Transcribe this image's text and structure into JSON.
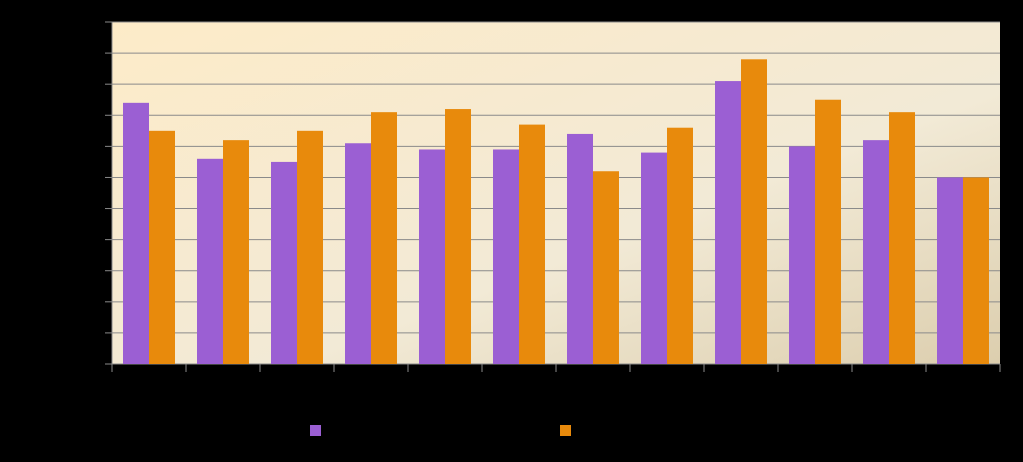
{
  "chart_data": {
    "type": "bar",
    "categories": [
      null,
      null,
      null,
      null,
      null,
      null,
      null,
      null,
      null,
      null,
      null,
      null
    ],
    "series": [
      {
        "color": "#9b5fd3",
        "values": [
          8.4,
          6.6,
          6.5,
          7.1,
          6.9,
          6.9,
          7.4,
          6.8,
          9.1,
          7.0,
          7.2,
          6.0
        ]
      },
      {
        "color": "#e88a0c",
        "values": [
          7.5,
          7.2,
          7.5,
          8.1,
          8.2,
          7.7,
          6.2,
          7.6,
          9.8,
          8.5,
          8.1,
          6.0
        ]
      }
    ],
    "ylim": [
      0,
      11
    ],
    "yticks": [
      0,
      1,
      2,
      3,
      4,
      5,
      6,
      7,
      8,
      9,
      10,
      11
    ],
    "grid": true
  }
}
